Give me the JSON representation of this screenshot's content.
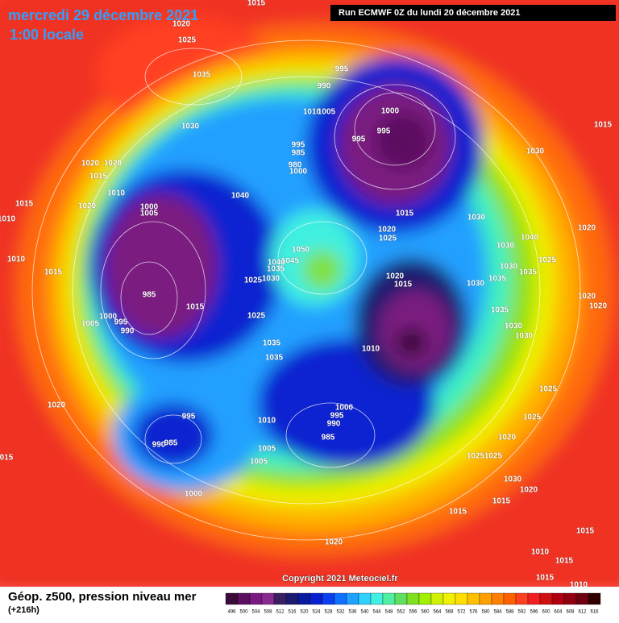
{
  "header": {
    "title": "mercredi 29 décembre 2021",
    "subtitle": "1:00 locale",
    "run": "Run ECMWF 0Z du lundi 20 décembre 2021"
  },
  "copyright": "Copyright 2021 Meteociel.fr",
  "footer": {
    "title": "Géop. z500, pression niveau mer",
    "lead": "(+216h)"
  },
  "color_scale": {
    "values": [
      496,
      500,
      504,
      508,
      512,
      516,
      520,
      524,
      528,
      532,
      536,
      540,
      544,
      548,
      552,
      556,
      560,
      564,
      568,
      572,
      576,
      580,
      584,
      588,
      592,
      596,
      600,
      604,
      608,
      612,
      616
    ],
    "colors": [
      "#3a0a3a",
      "#5c1060",
      "#7a1a80",
      "#8a2a90",
      "#3a2060",
      "#1a1a70",
      "#0a1aa0",
      "#0a20d0",
      "#0a40f0",
      "#1070ff",
      "#20a0ff",
      "#30d0ff",
      "#40f0e0",
      "#50f0a0",
      "#60e060",
      "#80e020",
      "#a0f000",
      "#d0f000",
      "#f0f000",
      "#ffe000",
      "#ffc000",
      "#ffa000",
      "#ff8000",
      "#ff6000",
      "#ff4020",
      "#f02020",
      "#d01010",
      "#b00010",
      "#900010",
      "#700010",
      "#300000"
    ]
  },
  "isobar_labels": [
    1015,
    1020,
    1025,
    1035,
    1030,
    995,
    990,
    1000,
    995,
    995,
    1005,
    1010,
    995,
    985,
    980,
    1000,
    1015,
    1030,
    1020,
    1015,
    1020,
    1010,
    1040,
    1015,
    1020,
    1000,
    1005,
    1015,
    1030,
    1020,
    1025,
    1040,
    1020,
    1010,
    1010,
    1015,
    1050,
    1045,
    1040,
    1035,
    1030,
    1025,
    1030,
    1025,
    1035,
    1030,
    1035,
    1020,
    1015,
    1030,
    985,
    1015,
    1000,
    995,
    990,
    1005,
    1025,
    1035,
    1030,
    1030,
    1020,
    1020,
    1035,
    1035,
    1010,
    1020,
    1025,
    1000,
    995,
    990,
    985,
    1010,
    995,
    990,
    985,
    1005,
    1005,
    1025,
    1025,
    1020,
    1025,
    1030,
    1020,
    1015,
    1015,
    1015,
    1000,
    "015",
    1020,
    1010,
    1015,
    1015,
    1010
  ]
}
